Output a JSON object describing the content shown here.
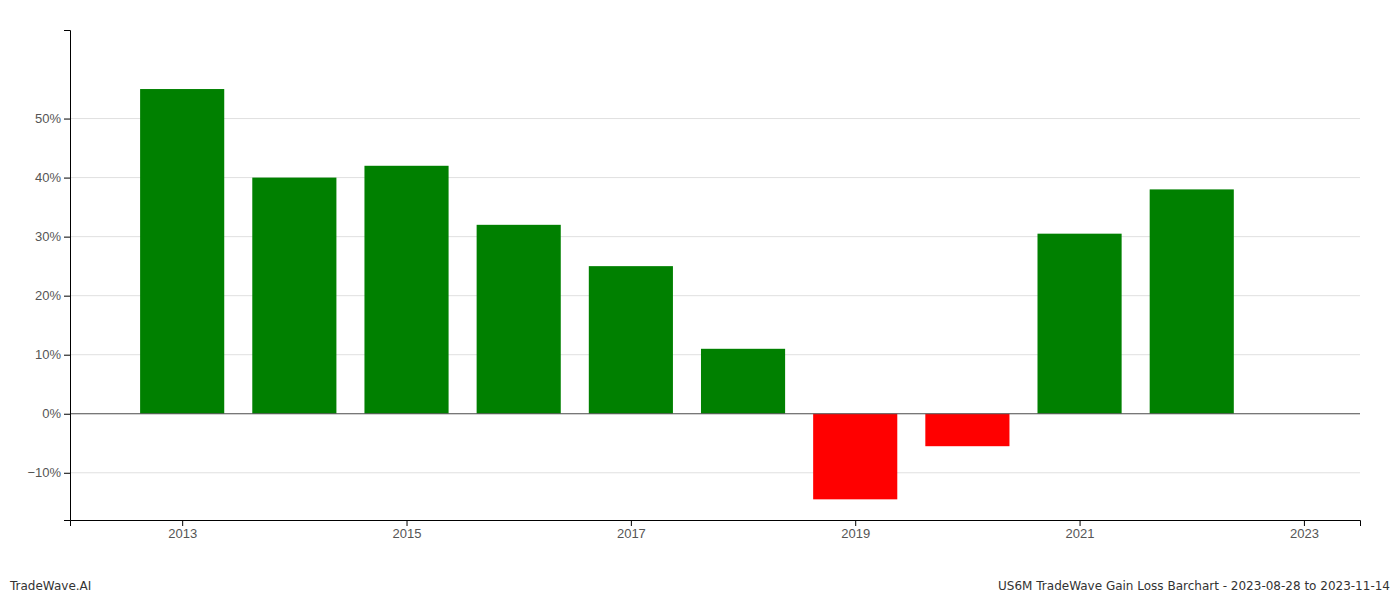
{
  "chart_data": {
    "type": "bar",
    "x": [
      2013,
      2014,
      2015,
      2016,
      2017,
      2018,
      2019,
      2020,
      2021,
      2022
    ],
    "values": [
      55.0,
      40.0,
      42.0,
      32.0,
      25.0,
      11.0,
      -14.5,
      -5.5,
      30.5,
      38.0
    ],
    "colors": [
      "#008000",
      "#008000",
      "#008000",
      "#008000",
      "#008000",
      "#008000",
      "#ff0000",
      "#ff0000",
      "#008000",
      "#008000"
    ],
    "xlim": [
      2012.0,
      2023.5
    ],
    "xticks": [
      2013,
      2015,
      2017,
      2019,
      2021,
      2023
    ],
    "ylim": [
      -18,
      65
    ],
    "yticks": [
      {
        "value": -10,
        "label": "−10%"
      },
      {
        "value": 0,
        "label": "0%"
      },
      {
        "value": 10,
        "label": "10%"
      },
      {
        "value": 20,
        "label": "20%"
      },
      {
        "value": 30,
        "label": "30%"
      },
      {
        "value": 40,
        "label": "40%"
      },
      {
        "value": 50,
        "label": "50%"
      }
    ],
    "grid": true,
    "annotations": [
      "TradeWave.AI",
      "US6M TradeWave Gain Loss Barchart - 2023-08-28 to 2023-11-14"
    ]
  }
}
